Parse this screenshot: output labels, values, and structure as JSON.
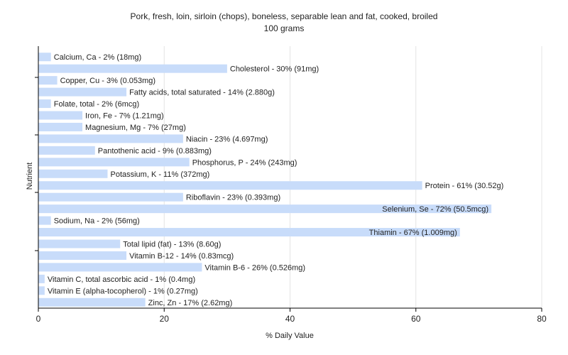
{
  "chart_data": {
    "type": "bar",
    "orientation": "horizontal",
    "title": "Pork, fresh, loin, sirloin (chops), boneless, separable lean and fat, cooked, broiled",
    "subtitle": "100 grams",
    "xlabel": "% Daily Value",
    "ylabel": "Nutrient",
    "xlim": [
      0,
      80
    ],
    "xticks": [
      0,
      20,
      40,
      60,
      80
    ],
    "grid": true,
    "bar_color": "#c8dcfa",
    "categories": [
      "Calcium, Ca",
      "Cholesterol",
      "Copper, Cu",
      "Fatty acids, total saturated",
      "Folate, total",
      "Iron, Fe",
      "Magnesium, Mg",
      "Niacin",
      "Pantothenic acid",
      "Phosphorus, P",
      "Potassium, K",
      "Protein",
      "Riboflavin",
      "Selenium, Se",
      "Sodium, Na",
      "Thiamin",
      "Total lipid (fat)",
      "Vitamin B-12",
      "Vitamin B-6",
      "Vitamin C, total ascorbic acid",
      "Vitamin E (alpha-tocopherol)",
      "Zinc, Zn"
    ],
    "values": [
      2,
      30,
      3,
      14,
      2,
      7,
      7,
      23,
      9,
      24,
      11,
      61,
      23,
      72,
      2,
      67,
      13,
      14,
      26,
      1,
      1,
      17
    ],
    "labels": [
      "Calcium, Ca - 2% (18mg)",
      "Cholesterol - 30% (91mg)",
      "Copper, Cu - 3% (0.053mg)",
      "Fatty acids, total saturated - 14% (2.880g)",
      "Folate, total - 2% (6mcg)",
      "Iron, Fe - 7% (1.21mg)",
      "Magnesium, Mg - 7% (27mg)",
      "Niacin - 23% (4.697mg)",
      "Pantothenic acid - 9% (0.883mg)",
      "Phosphorus, P - 24% (243mg)",
      "Potassium, K - 11% (372mg)",
      "Protein - 61% (30.52g)",
      "Riboflavin - 23% (0.393mg)",
      "Selenium, Se - 72% (50.5mcg)",
      "Sodium, Na - 2% (56mg)",
      "Thiamin - 67% (1.009mg)",
      "Total lipid (fat) - 13% (8.60g)",
      "Vitamin B-12 - 14% (0.83mcg)",
      "Vitamin B-6 - 26% (0.526mg)",
      "Vitamin C, total ascorbic acid - 1% (0.4mg)",
      "Vitamin E (alpha-tocopherol) - 1% (0.27mg)",
      "Zinc, Zn - 17% (2.62mg)"
    ]
  }
}
